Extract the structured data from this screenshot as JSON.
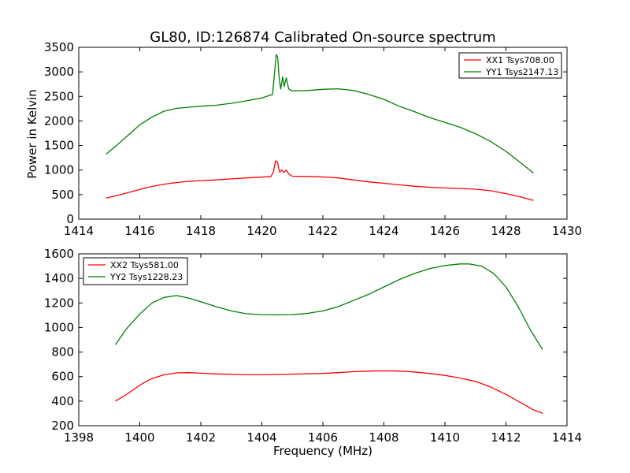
{
  "figure": {
    "title": "GL80, ID:126874 Calibrated On-source spectrum",
    "ylabel": "Power in Kelvin",
    "xlabel": "Frequency (MHz)"
  },
  "chart_data": [
    {
      "type": "line",
      "xlim": [
        1414,
        1430
      ],
      "ylim": [
        0,
        3500
      ],
      "xticks": [
        "1414",
        "1416",
        "1418",
        "1420",
        "1422",
        "1424",
        "1426",
        "1428",
        "1430"
      ],
      "yticks": [
        "0",
        "500",
        "1000",
        "1500",
        "2000",
        "2500",
        "3000",
        "3500"
      ],
      "legend_position": "top-right",
      "series": [
        {
          "name": "XX1 Tsys708.00",
          "color": "#ff0000",
          "points": [
            [
              1414.9,
              430
            ],
            [
              1415.3,
              490
            ],
            [
              1415.8,
              570
            ],
            [
              1416.2,
              640
            ],
            [
              1416.6,
              690
            ],
            [
              1417,
              730
            ],
            [
              1417.5,
              765
            ],
            [
              1418,
              785
            ],
            [
              1418.5,
              800
            ],
            [
              1419,
              820
            ],
            [
              1419.5,
              840
            ],
            [
              1420,
              855
            ],
            [
              1420.3,
              870
            ],
            [
              1420.38,
              960
            ],
            [
              1420.45,
              1190
            ],
            [
              1420.52,
              1150
            ],
            [
              1420.58,
              960
            ],
            [
              1420.65,
              1000
            ],
            [
              1420.72,
              950
            ],
            [
              1420.8,
              1000
            ],
            [
              1420.88,
              920
            ],
            [
              1421,
              875
            ],
            [
              1421.5,
              870
            ],
            [
              1422,
              860
            ],
            [
              1422.5,
              840
            ],
            [
              1423,
              800
            ],
            [
              1423.5,
              760
            ],
            [
              1424,
              730
            ],
            [
              1424.5,
              700
            ],
            [
              1425,
              670
            ],
            [
              1425.5,
              650
            ],
            [
              1426,
              635
            ],
            [
              1426.5,
              625
            ],
            [
              1427,
              610
            ],
            [
              1427.5,
              580
            ],
            [
              1428,
              520
            ],
            [
              1428.5,
              450
            ],
            [
              1428.9,
              380
            ]
          ]
        },
        {
          "name": "YY1 Tsys2147.13",
          "color": "#008000",
          "points": [
            [
              1414.9,
              1330
            ],
            [
              1415.2,
              1480
            ],
            [
              1415.6,
              1700
            ],
            [
              1416,
              1920
            ],
            [
              1416.4,
              2080
            ],
            [
              1416.8,
              2200
            ],
            [
              1417.2,
              2255
            ],
            [
              1417.6,
              2280
            ],
            [
              1418,
              2300
            ],
            [
              1418.5,
              2320
            ],
            [
              1419,
              2360
            ],
            [
              1419.5,
              2410
            ],
            [
              1420,
              2470
            ],
            [
              1420.35,
              2540
            ],
            [
              1420.42,
              3000
            ],
            [
              1420.47,
              3350
            ],
            [
              1420.52,
              3300
            ],
            [
              1420.57,
              2850
            ],
            [
              1420.62,
              2650
            ],
            [
              1420.68,
              2900
            ],
            [
              1420.73,
              2700
            ],
            [
              1420.8,
              2880
            ],
            [
              1420.88,
              2650
            ],
            [
              1421,
              2610
            ],
            [
              1421.5,
              2620
            ],
            [
              1422,
              2645
            ],
            [
              1422.5,
              2655
            ],
            [
              1423,
              2620
            ],
            [
              1423.5,
              2540
            ],
            [
              1424,
              2440
            ],
            [
              1424.5,
              2300
            ],
            [
              1425,
              2190
            ],
            [
              1425.5,
              2070
            ],
            [
              1426,
              1970
            ],
            [
              1426.5,
              1870
            ],
            [
              1427,
              1740
            ],
            [
              1427.5,
              1580
            ],
            [
              1428,
              1380
            ],
            [
              1428.5,
              1140
            ],
            [
              1428.9,
              940
            ]
          ]
        }
      ]
    },
    {
      "type": "line",
      "xlim": [
        1398,
        1414
      ],
      "ylim": [
        200,
        1600
      ],
      "xticks": [
        "1398",
        "1400",
        "1402",
        "1404",
        "1406",
        "1408",
        "1410",
        "1412",
        "1414"
      ],
      "yticks": [
        "200",
        "400",
        "600",
        "800",
        "1000",
        "1200",
        "1400",
        "1600"
      ],
      "legend_position": "top-left",
      "series": [
        {
          "name": "XX2 Tsys581.00",
          "color": "#ff0000",
          "points": [
            [
              1399.2,
              400
            ],
            [
              1399.6,
              460
            ],
            [
              1400,
              530
            ],
            [
              1400.4,
              585
            ],
            [
              1400.8,
              615
            ],
            [
              1401.2,
              630
            ],
            [
              1401.6,
              632
            ],
            [
              1402,
              628
            ],
            [
              1402.5,
              622
            ],
            [
              1403,
              618
            ],
            [
              1403.5,
              615
            ],
            [
              1404,
              615
            ],
            [
              1404.5,
              617
            ],
            [
              1405,
              620
            ],
            [
              1405.5,
              623
            ],
            [
              1406,
              626
            ],
            [
              1406.5,
              632
            ],
            [
              1407,
              640
            ],
            [
              1407.5,
              645
            ],
            [
              1408,
              647
            ],
            [
              1408.5,
              645
            ],
            [
              1409,
              638
            ],
            [
              1409.5,
              625
            ],
            [
              1410,
              610
            ],
            [
              1410.5,
              588
            ],
            [
              1411,
              560
            ],
            [
              1411.5,
              515
            ],
            [
              1412,
              455
            ],
            [
              1412.5,
              385
            ],
            [
              1412.9,
              330
            ],
            [
              1413.2,
              300
            ]
          ]
        },
        {
          "name": "YY2 Tsys1228.23",
          "color": "#008000",
          "points": [
            [
              1399.2,
              860
            ],
            [
              1399.6,
              1000
            ],
            [
              1400,
              1110
            ],
            [
              1400.4,
              1200
            ],
            [
              1400.8,
              1245
            ],
            [
              1401.2,
              1260
            ],
            [
              1401.6,
              1240
            ],
            [
              1402,
              1210
            ],
            [
              1402.5,
              1170
            ],
            [
              1403,
              1135
            ],
            [
              1403.5,
              1112
            ],
            [
              1404,
              1105
            ],
            [
              1404.5,
              1103
            ],
            [
              1405,
              1105
            ],
            [
              1405.5,
              1115
            ],
            [
              1406,
              1135
            ],
            [
              1406.5,
              1170
            ],
            [
              1407,
              1220
            ],
            [
              1407.5,
              1270
            ],
            [
              1408,
              1330
            ],
            [
              1408.5,
              1390
            ],
            [
              1409,
              1440
            ],
            [
              1409.5,
              1480
            ],
            [
              1410,
              1505
            ],
            [
              1410.5,
              1518
            ],
            [
              1410.8,
              1518
            ],
            [
              1411.2,
              1500
            ],
            [
              1411.6,
              1440
            ],
            [
              1412,
              1330
            ],
            [
              1412.4,
              1170
            ],
            [
              1412.8,
              980
            ],
            [
              1413.2,
              820
            ]
          ]
        }
      ]
    }
  ]
}
